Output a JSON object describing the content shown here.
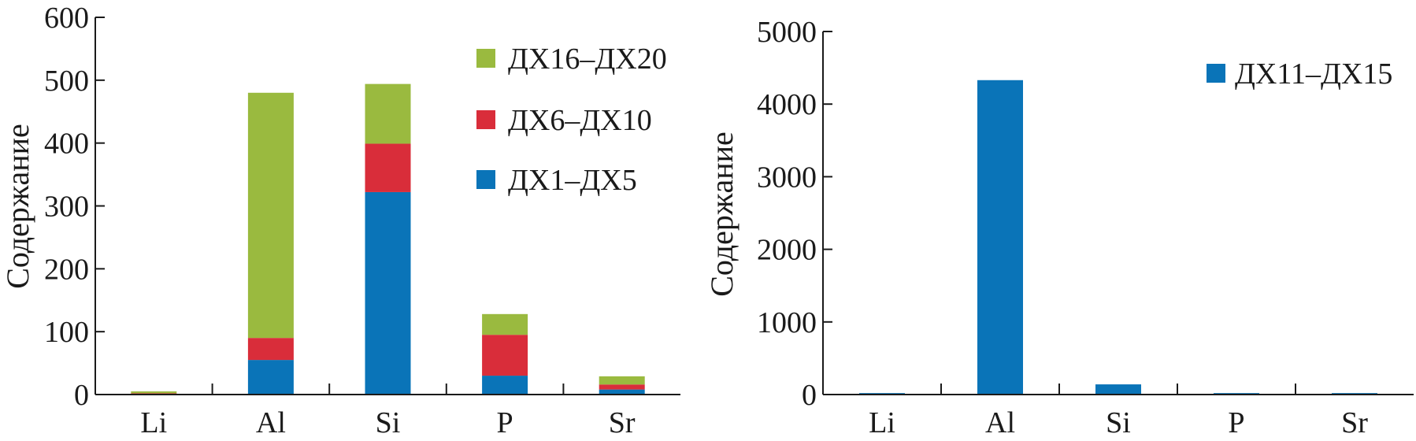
{
  "chart_data": [
    {
      "type": "bar",
      "stacked": true,
      "categories": [
        "Li",
        "Al",
        "Si",
        "P",
        "Sr"
      ],
      "ylabel": "Содержание",
      "ylim": [
        0,
        600
      ],
      "yticks": [
        0,
        100,
        200,
        300,
        400,
        500,
        600
      ],
      "grid": false,
      "legend_position": "top-right",
      "series": [
        {
          "name": "ДХ1–ДХ5",
          "color": "#0a74b8",
          "values": [
            1,
            55,
            322,
            30,
            8
          ]
        },
        {
          "name": "ДХ6–ДХ10",
          "color": "#d92d3a",
          "values": [
            1,
            35,
            77,
            65,
            8
          ]
        },
        {
          "name": "ДХ16–ДХ20",
          "color": "#9aba3f",
          "values": [
            3,
            390,
            95,
            33,
            13
          ]
        }
      ]
    },
    {
      "type": "bar",
      "stacked": false,
      "categories": [
        "Li",
        "Al",
        "Si",
        "P",
        "Sr"
      ],
      "ylabel": "Содержание",
      "ylim": [
        0,
        5000
      ],
      "yticks": [
        0,
        1000,
        2000,
        3000,
        4000,
        5000
      ],
      "grid": false,
      "legend_position": "top-right",
      "series": [
        {
          "name": "ДХ11–ДХ15",
          "color": "#0a74b8",
          "values": [
            20,
            4330,
            140,
            20,
            20
          ]
        }
      ]
    }
  ]
}
